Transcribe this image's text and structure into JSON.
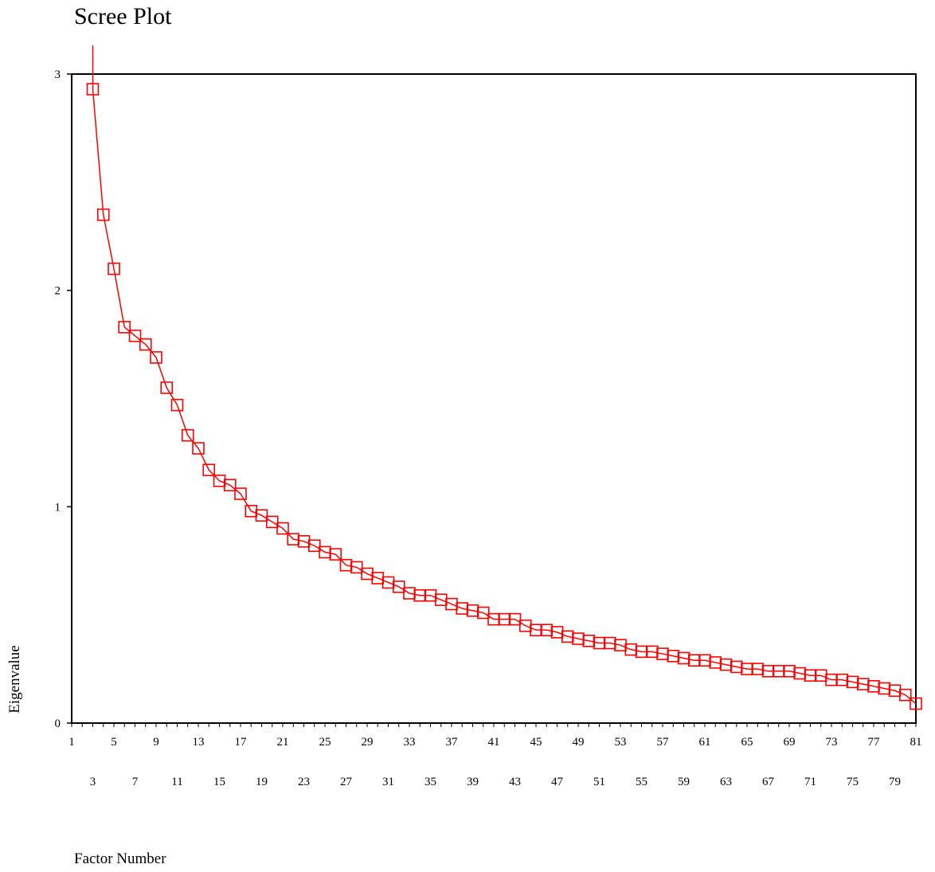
{
  "chart_data": {
    "type": "line",
    "title": "Scree Plot",
    "xlabel": "Factor Number",
    "ylabel": "Eigenvalue",
    "xlim": [
      1,
      81
    ],
    "ylim": [
      0,
      3
    ],
    "y_ticks": [
      0,
      1,
      2,
      3
    ],
    "x_ticks_row1": [
      1,
      5,
      9,
      13,
      17,
      21,
      25,
      29,
      33,
      37,
      41,
      45,
      49,
      53,
      57,
      61,
      65,
      69,
      73,
      77,
      81
    ],
    "x_ticks_row2": [
      3,
      7,
      11,
      15,
      19,
      23,
      27,
      31,
      35,
      39,
      43,
      47,
      51,
      55,
      59,
      63,
      67,
      71,
      75,
      79
    ],
    "marker": "square",
    "line_color": "#ff0000",
    "grid": false,
    "series": [
      {
        "x": [
          3,
          4,
          5,
          6,
          7,
          8,
          9,
          10,
          11,
          12,
          13,
          14,
          15,
          16,
          17,
          18,
          19,
          20,
          21,
          22,
          23,
          24,
          25,
          26,
          27,
          28,
          29,
          30,
          31,
          32,
          33,
          34,
          35,
          36,
          37,
          38,
          39,
          40,
          41,
          42,
          43,
          44,
          45,
          46,
          47,
          48,
          49,
          50,
          51,
          52,
          53,
          54,
          55,
          56,
          57,
          58,
          59,
          60,
          61,
          62,
          63,
          64,
          65,
          66,
          67,
          68,
          69,
          70,
          71,
          72,
          73,
          74,
          75,
          76,
          77,
          78,
          79,
          80,
          81
        ],
        "values": [
          2.93,
          2.35,
          2.1,
          1.83,
          1.79,
          1.75,
          1.69,
          1.55,
          1.47,
          1.33,
          1.27,
          1.17,
          1.12,
          1.1,
          1.06,
          0.98,
          0.96,
          0.93,
          0.9,
          0.85,
          0.84,
          0.82,
          0.79,
          0.78,
          0.73,
          0.72,
          0.69,
          0.67,
          0.65,
          0.63,
          0.6,
          0.59,
          0.59,
          0.57,
          0.55,
          0.53,
          0.52,
          0.51,
          0.48,
          0.48,
          0.48,
          0.45,
          0.43,
          0.43,
          0.42,
          0.4,
          0.39,
          0.38,
          0.37,
          0.37,
          0.36,
          0.34,
          0.33,
          0.33,
          0.32,
          0.31,
          0.3,
          0.29,
          0.29,
          0.28,
          0.27,
          0.26,
          0.25,
          0.25,
          0.24,
          0.24,
          0.24,
          0.23,
          0.22,
          0.22,
          0.2,
          0.2,
          0.19,
          0.18,
          0.17,
          0.16,
          0.15,
          0.13,
          0.09
        ]
      }
    ]
  }
}
